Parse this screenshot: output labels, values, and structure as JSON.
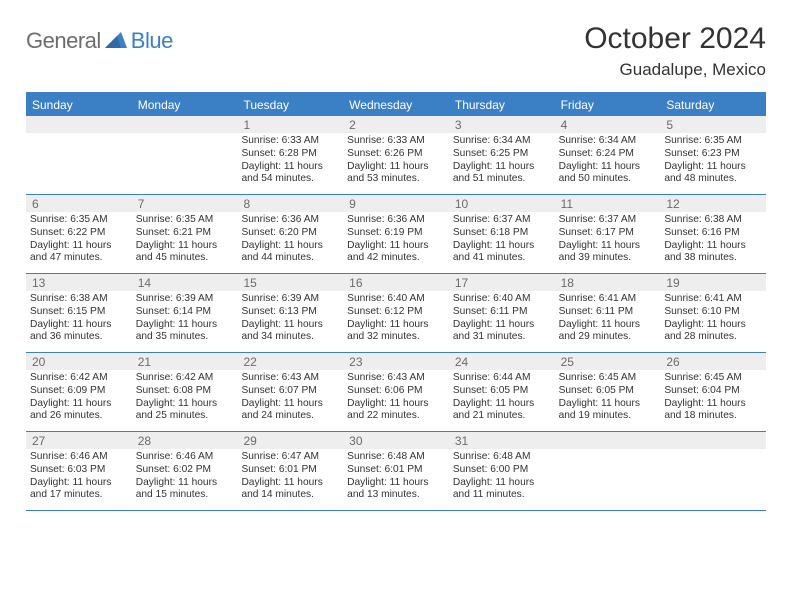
{
  "logo": {
    "part1": "General",
    "part2": "Blue"
  },
  "title": "October 2024",
  "subtitle": "Guadalupe, Mexico",
  "colors": {
    "brand": "#3b7fc4",
    "logo_gray": "#6d6d6d",
    "daybar_bg": "#eeeeee",
    "daybar_text": "#6b6b6b",
    "text": "#333333",
    "bg": "#ffffff"
  },
  "weekdays": [
    "Sunday",
    "Monday",
    "Tuesday",
    "Wednesday",
    "Thursday",
    "Friday",
    "Saturday"
  ],
  "weeks": [
    [
      {
        "n": "",
        "sr": "",
        "ss": "",
        "dl1": "",
        "dl2": ""
      },
      {
        "n": "",
        "sr": "",
        "ss": "",
        "dl1": "",
        "dl2": ""
      },
      {
        "n": "1",
        "sr": "Sunrise: 6:33 AM",
        "ss": "Sunset: 6:28 PM",
        "dl1": "Daylight: 11 hours",
        "dl2": "and 54 minutes."
      },
      {
        "n": "2",
        "sr": "Sunrise: 6:33 AM",
        "ss": "Sunset: 6:26 PM",
        "dl1": "Daylight: 11 hours",
        "dl2": "and 53 minutes."
      },
      {
        "n": "3",
        "sr": "Sunrise: 6:34 AM",
        "ss": "Sunset: 6:25 PM",
        "dl1": "Daylight: 11 hours",
        "dl2": "and 51 minutes."
      },
      {
        "n": "4",
        "sr": "Sunrise: 6:34 AM",
        "ss": "Sunset: 6:24 PM",
        "dl1": "Daylight: 11 hours",
        "dl2": "and 50 minutes."
      },
      {
        "n": "5",
        "sr": "Sunrise: 6:35 AM",
        "ss": "Sunset: 6:23 PM",
        "dl1": "Daylight: 11 hours",
        "dl2": "and 48 minutes."
      }
    ],
    [
      {
        "n": "6",
        "sr": "Sunrise: 6:35 AM",
        "ss": "Sunset: 6:22 PM",
        "dl1": "Daylight: 11 hours",
        "dl2": "and 47 minutes."
      },
      {
        "n": "7",
        "sr": "Sunrise: 6:35 AM",
        "ss": "Sunset: 6:21 PM",
        "dl1": "Daylight: 11 hours",
        "dl2": "and 45 minutes."
      },
      {
        "n": "8",
        "sr": "Sunrise: 6:36 AM",
        "ss": "Sunset: 6:20 PM",
        "dl1": "Daylight: 11 hours",
        "dl2": "and 44 minutes."
      },
      {
        "n": "9",
        "sr": "Sunrise: 6:36 AM",
        "ss": "Sunset: 6:19 PM",
        "dl1": "Daylight: 11 hours",
        "dl2": "and 42 minutes."
      },
      {
        "n": "10",
        "sr": "Sunrise: 6:37 AM",
        "ss": "Sunset: 6:18 PM",
        "dl1": "Daylight: 11 hours",
        "dl2": "and 41 minutes."
      },
      {
        "n": "11",
        "sr": "Sunrise: 6:37 AM",
        "ss": "Sunset: 6:17 PM",
        "dl1": "Daylight: 11 hours",
        "dl2": "and 39 minutes."
      },
      {
        "n": "12",
        "sr": "Sunrise: 6:38 AM",
        "ss": "Sunset: 6:16 PM",
        "dl1": "Daylight: 11 hours",
        "dl2": "and 38 minutes."
      }
    ],
    [
      {
        "n": "13",
        "sr": "Sunrise: 6:38 AM",
        "ss": "Sunset: 6:15 PM",
        "dl1": "Daylight: 11 hours",
        "dl2": "and 36 minutes."
      },
      {
        "n": "14",
        "sr": "Sunrise: 6:39 AM",
        "ss": "Sunset: 6:14 PM",
        "dl1": "Daylight: 11 hours",
        "dl2": "and 35 minutes."
      },
      {
        "n": "15",
        "sr": "Sunrise: 6:39 AM",
        "ss": "Sunset: 6:13 PM",
        "dl1": "Daylight: 11 hours",
        "dl2": "and 34 minutes."
      },
      {
        "n": "16",
        "sr": "Sunrise: 6:40 AM",
        "ss": "Sunset: 6:12 PM",
        "dl1": "Daylight: 11 hours",
        "dl2": "and 32 minutes."
      },
      {
        "n": "17",
        "sr": "Sunrise: 6:40 AM",
        "ss": "Sunset: 6:11 PM",
        "dl1": "Daylight: 11 hours",
        "dl2": "and 31 minutes."
      },
      {
        "n": "18",
        "sr": "Sunrise: 6:41 AM",
        "ss": "Sunset: 6:11 PM",
        "dl1": "Daylight: 11 hours",
        "dl2": "and 29 minutes."
      },
      {
        "n": "19",
        "sr": "Sunrise: 6:41 AM",
        "ss": "Sunset: 6:10 PM",
        "dl1": "Daylight: 11 hours",
        "dl2": "and 28 minutes."
      }
    ],
    [
      {
        "n": "20",
        "sr": "Sunrise: 6:42 AM",
        "ss": "Sunset: 6:09 PM",
        "dl1": "Daylight: 11 hours",
        "dl2": "and 26 minutes."
      },
      {
        "n": "21",
        "sr": "Sunrise: 6:42 AM",
        "ss": "Sunset: 6:08 PM",
        "dl1": "Daylight: 11 hours",
        "dl2": "and 25 minutes."
      },
      {
        "n": "22",
        "sr": "Sunrise: 6:43 AM",
        "ss": "Sunset: 6:07 PM",
        "dl1": "Daylight: 11 hours",
        "dl2": "and 24 minutes."
      },
      {
        "n": "23",
        "sr": "Sunrise: 6:43 AM",
        "ss": "Sunset: 6:06 PM",
        "dl1": "Daylight: 11 hours",
        "dl2": "and 22 minutes."
      },
      {
        "n": "24",
        "sr": "Sunrise: 6:44 AM",
        "ss": "Sunset: 6:05 PM",
        "dl1": "Daylight: 11 hours",
        "dl2": "and 21 minutes."
      },
      {
        "n": "25",
        "sr": "Sunrise: 6:45 AM",
        "ss": "Sunset: 6:05 PM",
        "dl1": "Daylight: 11 hours",
        "dl2": "and 19 minutes."
      },
      {
        "n": "26",
        "sr": "Sunrise: 6:45 AM",
        "ss": "Sunset: 6:04 PM",
        "dl1": "Daylight: 11 hours",
        "dl2": "and 18 minutes."
      }
    ],
    [
      {
        "n": "27",
        "sr": "Sunrise: 6:46 AM",
        "ss": "Sunset: 6:03 PM",
        "dl1": "Daylight: 11 hours",
        "dl2": "and 17 minutes."
      },
      {
        "n": "28",
        "sr": "Sunrise: 6:46 AM",
        "ss": "Sunset: 6:02 PM",
        "dl1": "Daylight: 11 hours",
        "dl2": "and 15 minutes."
      },
      {
        "n": "29",
        "sr": "Sunrise: 6:47 AM",
        "ss": "Sunset: 6:01 PM",
        "dl1": "Daylight: 11 hours",
        "dl2": "and 14 minutes."
      },
      {
        "n": "30",
        "sr": "Sunrise: 6:48 AM",
        "ss": "Sunset: 6:01 PM",
        "dl1": "Daylight: 11 hours",
        "dl2": "and 13 minutes."
      },
      {
        "n": "31",
        "sr": "Sunrise: 6:48 AM",
        "ss": "Sunset: 6:00 PM",
        "dl1": "Daylight: 11 hours",
        "dl2": "and 11 minutes."
      },
      {
        "n": "",
        "sr": "",
        "ss": "",
        "dl1": "",
        "dl2": ""
      },
      {
        "n": "",
        "sr": "",
        "ss": "",
        "dl1": "",
        "dl2": ""
      }
    ]
  ]
}
